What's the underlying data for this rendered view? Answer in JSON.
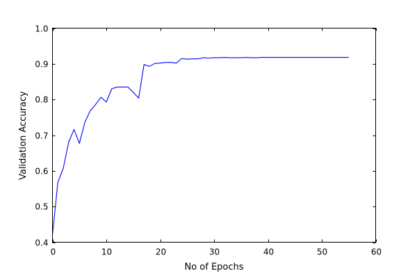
{
  "chart_data": {
    "type": "line",
    "title": "",
    "xlabel": "No of Epochs",
    "ylabel": "Validation Accuracy",
    "xlim": [
      0,
      60
    ],
    "ylim": [
      0.4,
      1.0
    ],
    "grid": false,
    "legend": "none",
    "x_ticks": [
      "0",
      "10",
      "20",
      "30",
      "40",
      "50",
      "60"
    ],
    "y_ticks": [
      "0.4",
      "0.5",
      "0.6",
      "0.7",
      "0.8",
      "0.9",
      "1.0"
    ],
    "series": [
      {
        "color": "#0000ff",
        "x": [
          0,
          1,
          2,
          3,
          4,
          5,
          6,
          7,
          8,
          9,
          10,
          11,
          12,
          13,
          14,
          15,
          16,
          17,
          18,
          19,
          20,
          21,
          22,
          23,
          24,
          25,
          26,
          27,
          28,
          29,
          30,
          31,
          32,
          33,
          34,
          35,
          36,
          37,
          38,
          39,
          40,
          41,
          42,
          43,
          44,
          45,
          46,
          47,
          48,
          49,
          50,
          51,
          52,
          53,
          54,
          55
        ],
        "y": [
          0.42,
          0.568,
          0.607,
          0.68,
          0.716,
          0.677,
          0.736,
          0.768,
          0.786,
          0.806,
          0.793,
          0.83,
          0.835,
          0.835,
          0.835,
          0.82,
          0.804,
          0.898,
          0.893,
          0.901,
          0.902,
          0.904,
          0.904,
          0.902,
          0.915,
          0.913,
          0.914,
          0.914,
          0.917,
          0.916,
          0.917,
          0.917,
          0.918,
          0.917,
          0.917,
          0.917,
          0.918,
          0.917,
          0.917,
          0.918,
          0.918,
          0.918,
          0.918,
          0.918,
          0.918,
          0.918,
          0.918,
          0.918,
          0.918,
          0.918,
          0.918,
          0.918,
          0.918,
          0.918,
          0.918,
          0.918
        ]
      }
    ]
  }
}
